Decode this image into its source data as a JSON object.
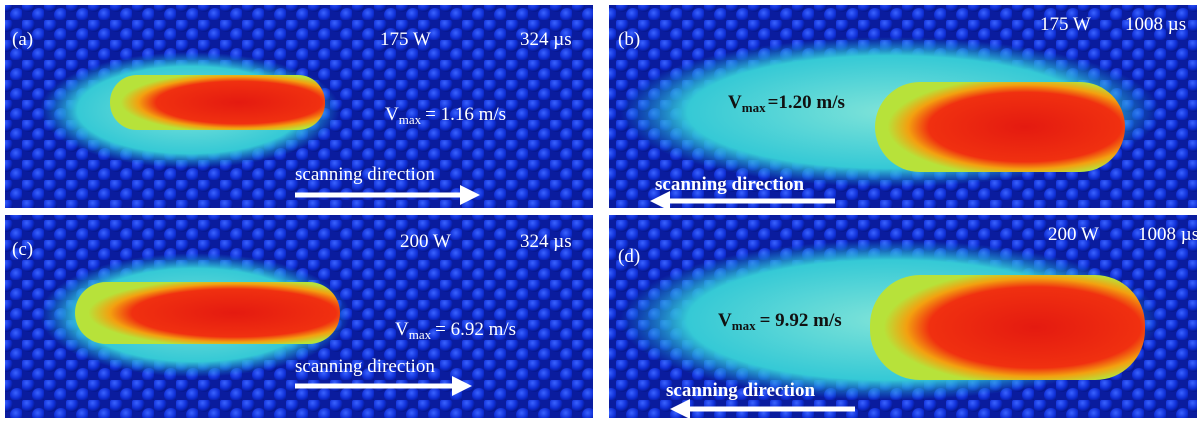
{
  "panels": [
    {
      "label": "(a)",
      "power": "175 W",
      "time": "324 µs",
      "vmax": {
        "symbol": "V",
        "subscript": "max",
        "value": "= 1.16 m/s"
      },
      "direction": "scanning direction"
    },
    {
      "label": "(b)",
      "power": "175 W",
      "time": "1008 µs",
      "vmax": {
        "symbol": "V",
        "subscript": "max",
        "value": "=1.20 m/s"
      },
      "direction": "scanning direction"
    },
    {
      "label": "(c)",
      "power": "200 W",
      "time": "324 µs",
      "vmax": {
        "symbol": "V",
        "subscript": "max",
        "value": "= 6.92 m/s"
      },
      "direction": "scanning direction"
    },
    {
      "label": "(d)",
      "power": "200 W",
      "time": "1008 µs",
      "vmax": {
        "symbol": "V",
        "subscript": "max",
        "value": "= 9.92 m/s"
      },
      "direction": "scanning direction"
    }
  ]
}
